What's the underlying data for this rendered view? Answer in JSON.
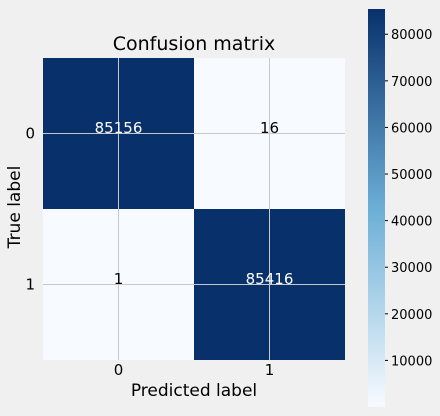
{
  "chart_data": {
    "type": "heatmap",
    "title": "Confusion matrix",
    "xlabel": "Predicted label",
    "ylabel": "True label",
    "x_categories": [
      "0",
      "1"
    ],
    "y_categories": [
      "0",
      "1"
    ],
    "values": [
      [
        85156,
        16
      ],
      [
        1,
        85416
      ]
    ],
    "colormap": "Blues",
    "colorbar": {
      "ticks": [
        10000,
        20000,
        30000,
        40000,
        50000,
        60000,
        70000,
        80000
      ],
      "range": [
        1,
        85416
      ]
    },
    "grid": true
  },
  "colors": {
    "background": "#f0f0f0",
    "low": "#f7fbff",
    "high": "#08306b",
    "grid": "#c8c8c8",
    "cell_text_on_dark": "#ffffff",
    "cell_text_on_light": "#000000"
  }
}
